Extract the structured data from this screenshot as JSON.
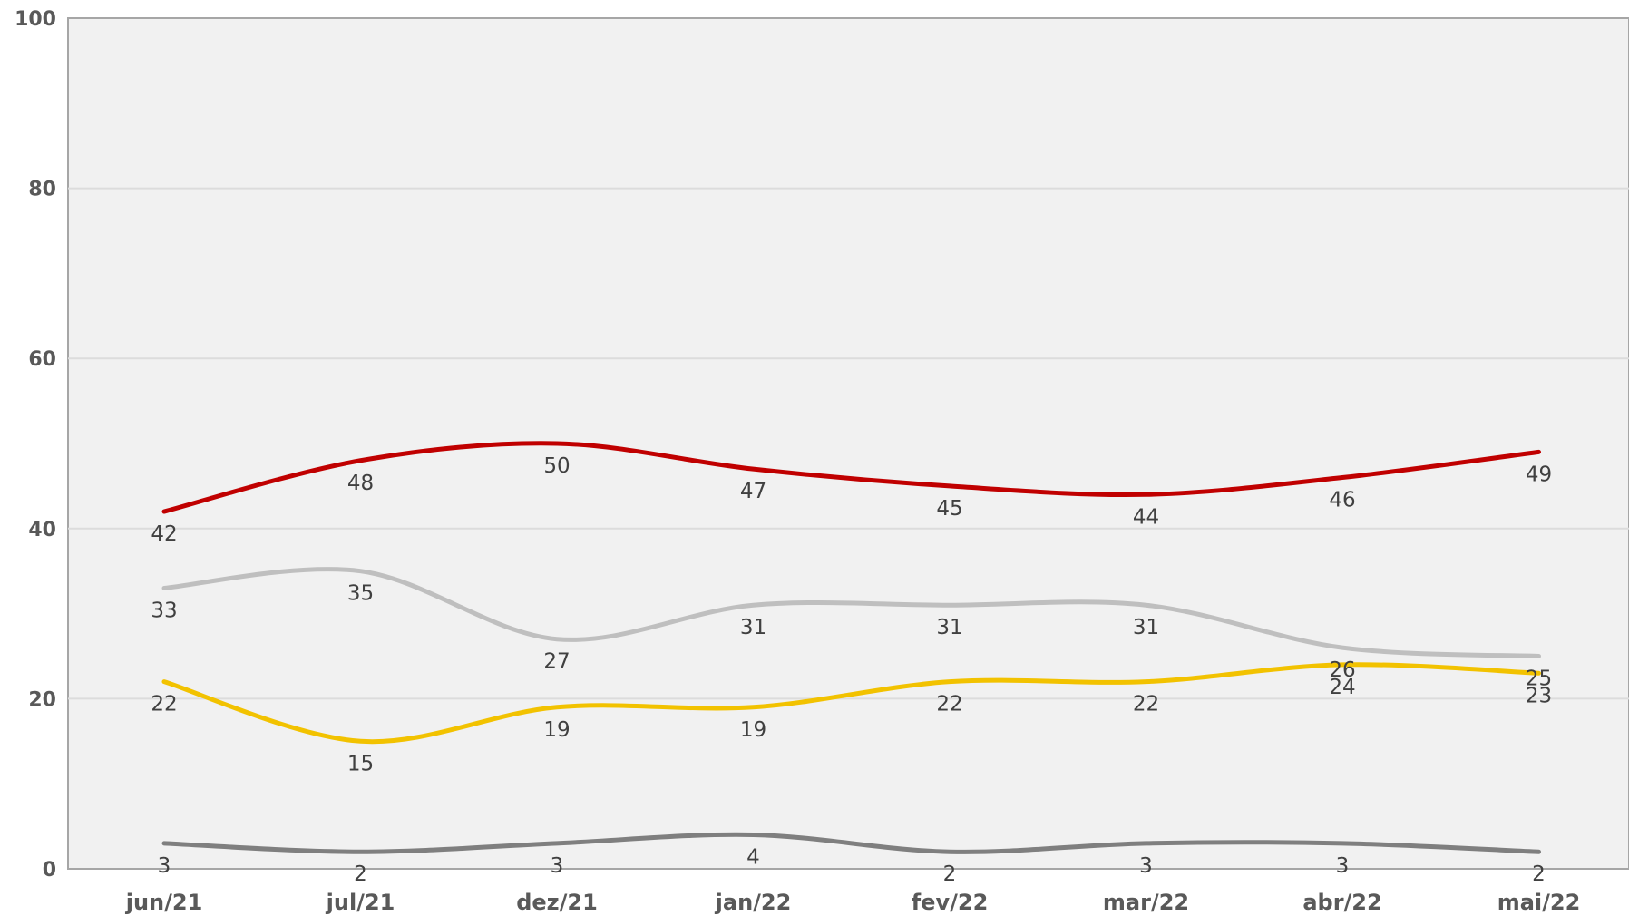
{
  "chart_data": {
    "type": "line",
    "categories": [
      "jun/21",
      "jul/21",
      "dez/21",
      "jan/22",
      "fev/22",
      "mar/22",
      "abr/22",
      "mai/22"
    ],
    "ylim": [
      0,
      100
    ],
    "yticks": [
      0,
      20,
      40,
      60,
      80,
      100
    ],
    "grid": true,
    "legend": "none",
    "colors": {
      "plot_background": "#f1f1f1",
      "gridline": "#dcdcdc",
      "axis": "#a6a6a6"
    },
    "series": [
      {
        "color": "#c00000",
        "values": [
          42,
          48,
          50,
          47,
          45,
          44,
          46,
          49
        ],
        "labels": [
          "42",
          "48",
          "50",
          "47",
          "45",
          "44",
          "46",
          "49"
        ]
      },
      {
        "color": "#bfbfbf",
        "values": [
          33,
          35,
          27,
          31,
          31,
          31,
          26,
          25
        ],
        "labels": [
          "33",
          "35",
          "27",
          "31",
          "31",
          "31",
          "26",
          "25"
        ]
      },
      {
        "color": "#f2c200",
        "values": [
          22,
          15,
          19,
          19,
          22,
          22,
          24,
          23
        ],
        "labels": [
          "22",
          "15",
          "19",
          "19",
          "22",
          "22",
          "24",
          "23"
        ]
      },
      {
        "color": "#7f7f7f",
        "values": [
          3,
          2,
          3,
          4,
          2,
          3,
          3,
          2
        ],
        "labels": [
          "3",
          "2",
          "3",
          "4",
          "2",
          "3",
          "3",
          "2"
        ]
      }
    ]
  }
}
